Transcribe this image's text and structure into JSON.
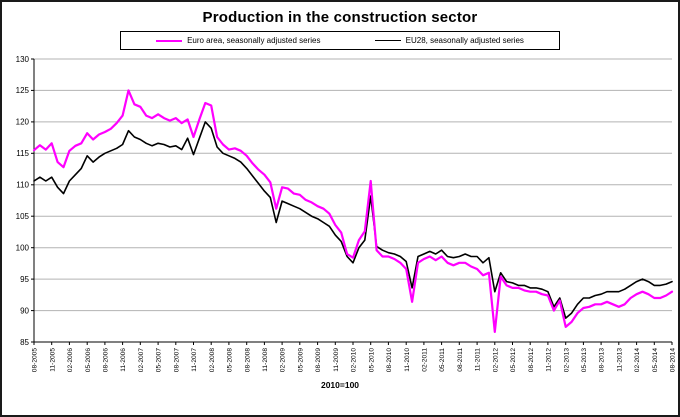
{
  "chart_data": {
    "type": "line",
    "title": "Production in the construction sector",
    "x_label_note": "2010=100",
    "ylim": [
      85,
      130
    ],
    "y_ticks": [
      85,
      90,
      95,
      100,
      105,
      110,
      115,
      120,
      125,
      130
    ],
    "x_tick_interval": 3,
    "grid": true,
    "legend_position": "top",
    "x": [
      "08-2005",
      "09-2005",
      "10-2005",
      "11-2005",
      "12-2005",
      "01-2006",
      "02-2006",
      "03-2006",
      "04-2006",
      "05-2006",
      "06-2006",
      "07-2006",
      "08-2006",
      "09-2006",
      "10-2006",
      "11-2006",
      "12-2006",
      "01-2007",
      "02-2007",
      "03-2007",
      "04-2007",
      "05-2007",
      "06-2007",
      "07-2007",
      "08-2007",
      "09-2007",
      "10-2007",
      "11-2007",
      "12-2007",
      "01-2008",
      "02-2008",
      "03-2008",
      "04-2008",
      "05-2008",
      "06-2008",
      "07-2008",
      "08-2008",
      "09-2008",
      "10-2008",
      "11-2008",
      "12-2008",
      "01-2009",
      "02-2009",
      "03-2009",
      "04-2009",
      "05-2009",
      "06-2009",
      "07-2009",
      "08-2009",
      "09-2009",
      "10-2009",
      "11-2009",
      "12-2009",
      "01-2010",
      "02-2010",
      "03-2010",
      "04-2010",
      "05-2010",
      "06-2010",
      "07-2010",
      "08-2010",
      "09-2010",
      "10-2010",
      "11-2010",
      "12-2010",
      "01-2011",
      "02-2011",
      "03-2011",
      "04-2011",
      "05-2011",
      "06-2011",
      "07-2011",
      "08-2011",
      "09-2011",
      "10-2011",
      "11-2011",
      "12-2011",
      "01-2012",
      "02-2012",
      "03-2012",
      "04-2012",
      "05-2012",
      "06-2012",
      "07-2012",
      "08-2012",
      "09-2012",
      "10-2012",
      "11-2012",
      "12-2012",
      "01-2013",
      "02-2013",
      "03-2013",
      "04-2013",
      "05-2013",
      "06-2013",
      "07-2013",
      "08-2013",
      "09-2013",
      "10-2013",
      "11-2013",
      "12-2013",
      "01-2014",
      "02-2014",
      "03-2014",
      "04-2014",
      "05-2014",
      "06-2014",
      "07-2014",
      "08-2014"
    ],
    "series": [
      {
        "name": "Euro area, seasonally adjusted series",
        "color": "#FF00FF",
        "line_width": 2.2,
        "values": [
          115.5,
          116.3,
          115.6,
          116.6,
          113.6,
          112.8,
          115.4,
          116.2,
          116.6,
          118.2,
          117.2,
          118.0,
          118.4,
          118.9,
          119.8,
          121.0,
          125.0,
          122.8,
          122.4,
          121.0,
          120.6,
          121.2,
          120.6,
          120.2,
          120.6,
          119.8,
          120.4,
          117.6,
          120.4,
          123.0,
          122.6,
          117.6,
          116.4,
          115.6,
          115.8,
          115.4,
          114.6,
          113.4,
          112.4,
          111.6,
          110.4,
          106.2,
          109.6,
          109.4,
          108.6,
          108.4,
          107.6,
          107.2,
          106.6,
          106.2,
          105.4,
          103.6,
          102.4,
          99.0,
          98.4,
          101.2,
          102.6,
          110.6,
          99.6,
          98.6,
          98.6,
          98.2,
          97.6,
          96.6,
          91.4,
          97.6,
          98.2,
          98.6,
          98.0,
          98.6,
          97.6,
          97.2,
          97.6,
          97.6,
          97.0,
          96.6,
          95.6,
          96.0,
          86.6,
          95.4,
          94.0,
          93.6,
          93.6,
          93.2,
          93.0,
          93.0,
          92.6,
          92.4,
          90.0,
          91.6,
          87.4,
          88.2,
          89.6,
          90.4,
          90.6,
          91.0,
          91.0,
          91.4,
          91.0,
          90.6,
          91.0,
          92.0,
          92.6,
          93.0,
          92.6,
          92.0,
          92.0,
          92.4,
          93.0
        ]
      },
      {
        "name": "EU28, seasonally adjusted series",
        "color": "#000000",
        "line_width": 1.6,
        "values": [
          110.6,
          111.2,
          110.6,
          111.2,
          109.6,
          108.6,
          110.6,
          111.6,
          112.6,
          114.6,
          113.6,
          114.4,
          115.0,
          115.4,
          115.8,
          116.4,
          118.6,
          117.6,
          117.2,
          116.6,
          116.2,
          116.6,
          116.4,
          116.0,
          116.2,
          115.6,
          117.4,
          114.8,
          117.4,
          120.0,
          119.0,
          116.0,
          115.0,
          114.6,
          114.2,
          113.6,
          112.6,
          111.4,
          110.2,
          109.0,
          108.0,
          104.0,
          107.4,
          107.0,
          106.6,
          106.2,
          105.6,
          105.0,
          104.6,
          104.0,
          103.4,
          102.0,
          101.0,
          98.6,
          97.6,
          100.0,
          101.2,
          108.2,
          100.2,
          99.6,
          99.2,
          99.0,
          98.6,
          97.8,
          93.6,
          98.6,
          99.0,
          99.4,
          99.0,
          99.6,
          98.6,
          98.4,
          98.6,
          99.0,
          98.6,
          98.6,
          97.6,
          98.4,
          93.0,
          96.0,
          94.6,
          94.4,
          94.0,
          94.0,
          93.6,
          93.6,
          93.4,
          93.0,
          90.6,
          92.0,
          88.8,
          89.6,
          91.0,
          92.0,
          92.0,
          92.4,
          92.6,
          93.0,
          93.0,
          93.0,
          93.4,
          94.0,
          94.6,
          95.0,
          94.6,
          94.0,
          94.0,
          94.2,
          94.6
        ]
      }
    ]
  }
}
